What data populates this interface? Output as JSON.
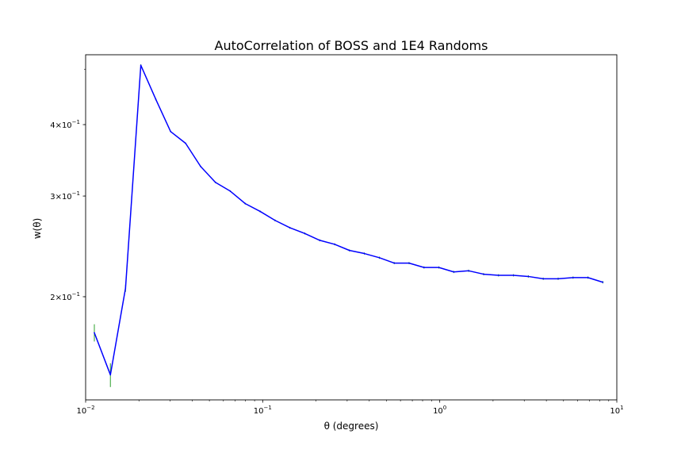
{
  "chart_data": {
    "type": "line",
    "title": "AutoCorrelation of BOSS and 1E4 Randoms",
    "xlabel": "θ (degrees)",
    "ylabel": "w(θ)",
    "xscale": "log",
    "yscale": "log",
    "xlim": [
      0.01,
      10
    ],
    "ylim": [
      0.132,
      0.53
    ],
    "grid": false,
    "x_ticks": [
      {
        "value": 0.01,
        "base": "10",
        "exp": "−2"
      },
      {
        "value": 0.1,
        "base": "10",
        "exp": "−1"
      },
      {
        "value": 1,
        "base": "10",
        "exp": "0"
      },
      {
        "value": 10,
        "base": "10",
        "exp": "1"
      }
    ],
    "y_ticks": [
      {
        "value": 0.2,
        "mantissa": "2",
        "base": "10",
        "exp": "−1"
      },
      {
        "value": 0.3,
        "mantissa": "3",
        "base": "10",
        "exp": "−1"
      },
      {
        "value": 0.4,
        "mantissa": "4",
        "base": "10",
        "exp": "−1"
      }
    ],
    "series": [
      {
        "color": "#0000ff",
        "error_color": "#2ca02c",
        "x": [
          0.0112,
          0.0138,
          0.0168,
          0.0205,
          0.0249,
          0.0302,
          0.0367,
          0.0446,
          0.0541,
          0.0656,
          0.0797,
          0.0967,
          0.1174,
          0.1425,
          0.173,
          0.21,
          0.255,
          0.309,
          0.375,
          0.456,
          0.553,
          0.671,
          0.815,
          0.989,
          1.2,
          1.457,
          1.769,
          2.147,
          2.607,
          3.164,
          3.841,
          4.663,
          5.661,
          6.872,
          8.341
        ],
        "y": [
          0.173,
          0.146,
          0.207,
          0.508,
          0.443,
          0.389,
          0.371,
          0.338,
          0.317,
          0.306,
          0.291,
          0.282,
          0.272,
          0.264,
          0.258,
          0.251,
          0.247,
          0.241,
          0.238,
          0.234,
          0.229,
          0.229,
          0.225,
          0.225,
          0.221,
          0.222,
          0.219,
          0.218,
          0.218,
          0.217,
          0.215,
          0.215,
          0.216,
          0.216,
          0.212
        ],
        "yerr": [
          0.006,
          0.007,
          0.003,
          0.002,
          0.002,
          0.001,
          0.001,
          0.001,
          0.001,
          0.001,
          0.001,
          0.001,
          0.001,
          0.001,
          0.001,
          0.001,
          0.001,
          0.001,
          0.001,
          0.001,
          0.001,
          0.001,
          0.001,
          0.001,
          0.001,
          0.001,
          0.001,
          0.001,
          0.001,
          0.001,
          0.001,
          0.001,
          0.001,
          0.001,
          0.001
        ]
      }
    ]
  }
}
